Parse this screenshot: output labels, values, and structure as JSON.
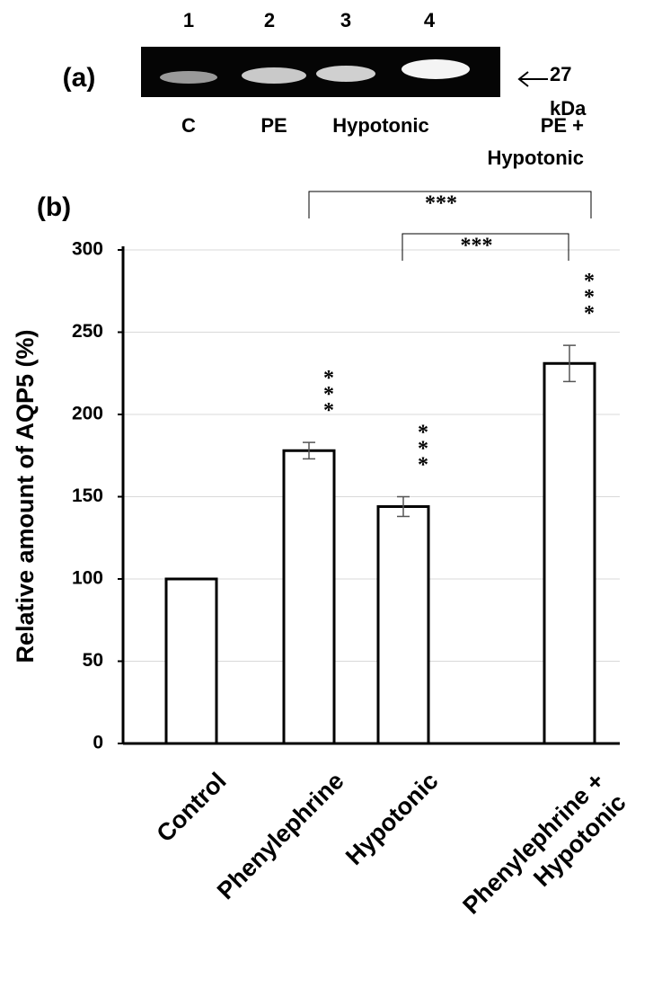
{
  "panel_a": {
    "panel_label": "(a)",
    "lanes": [
      "1",
      "2",
      "3",
      "4"
    ],
    "lane_labels": [
      "C",
      "PE",
      "Hypotonic",
      "PE + Hypotonic"
    ],
    "marker": "27 kDa"
  },
  "chart_data": {
    "type": "bar",
    "panel_label": "(b)",
    "y_label": "Relative amount of AQP5 (%)",
    "categories": [
      "Control",
      "Phenylephrine",
      "Hypotonic",
      "Phenylephrine + Hypotonic"
    ],
    "values": [
      100,
      178,
      144,
      231
    ],
    "errors": [
      null,
      5,
      6,
      11
    ],
    "bar_labels": [
      null,
      "***",
      "***",
      "***"
    ],
    "annotations": [
      "***",
      "***"
    ],
    "color": "#ffffff",
    "ylim": [
      0,
      300
    ],
    "yticks": [
      0,
      50,
      100,
      150,
      200,
      250,
      300
    ],
    "grid": true
  }
}
